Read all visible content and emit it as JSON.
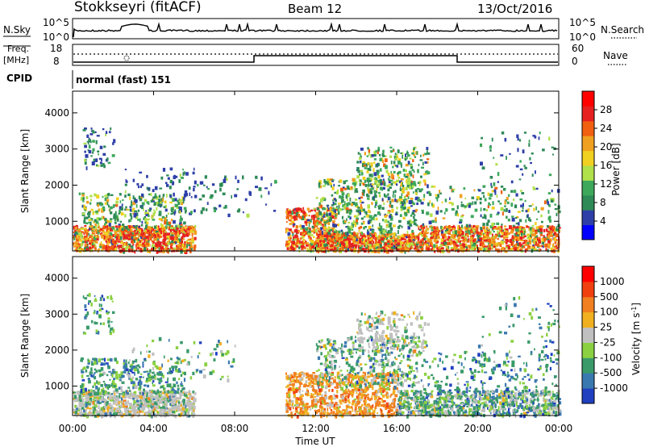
{
  "header": {
    "station": "Stokkseyri (fitACF)",
    "beam": "Beam 12",
    "date": "13/Oct/2016"
  },
  "nsky_panel": {
    "left_label": "N.Sky",
    "left_ticks": [
      "10^5",
      "10^0"
    ],
    "right_ticks": [
      "10^5",
      "10^0"
    ],
    "right_label": "N.Search"
  },
  "freq_panel": {
    "left_label": "Freq.",
    "left_unit": "[MHz]",
    "left_ticks": [
      "18",
      "8"
    ],
    "right_ticks": [
      "60",
      "0"
    ],
    "right_label": "Nave"
  },
  "cpid_label": "CPID",
  "cpid_text": "normal (fast) 151",
  "chart_data": [
    {
      "type": "heatmap",
      "name": "power",
      "ylabel": "Slant Range [km]",
      "ylim": [
        180,
        4600
      ],
      "yticks": [
        "1000",
        "2000",
        "3000",
        "4000"
      ],
      "yvals": [
        1000,
        2000,
        3000,
        4000
      ],
      "xlim_hours": [
        0,
        24
      ],
      "colorbar": {
        "label": "Power [dB]",
        "ticks": [
          "28",
          "24",
          "20",
          "16",
          "12",
          "8",
          "4"
        ],
        "colors": [
          "#0000ff",
          "#2e3fa8",
          "#2e8a57",
          "#3da85a",
          "#b0e04a",
          "#f0d020",
          "#f0a020",
          "#f06010",
          "#e62020",
          "#ff0000"
        ]
      }
    },
    {
      "type": "heatmap",
      "name": "velocity",
      "ylabel": "Slant Range [km]",
      "ylim": [
        180,
        4600
      ],
      "yticks": [
        "1000",
        "2000",
        "3000",
        "4000"
      ],
      "yvals": [
        1000,
        2000,
        3000,
        4000
      ],
      "xlim_hours": [
        0,
        24
      ],
      "colorbar": {
        "label": "Velocity [m s",
        "label_sup": "-1",
        "label_close": "]",
        "ticks": [
          "1000",
          "500",
          "100",
          "25",
          "-25",
          "-100",
          "-500",
          "-1000"
        ],
        "colors": [
          "#2040c0",
          "#3a78b0",
          "#3a9a6a",
          "#8ad040",
          "#c0c0c0",
          "#f0b020",
          "#f08020",
          "#f04010",
          "#ff0000"
        ]
      }
    }
  ],
  "xaxis": {
    "ticks": [
      "00:00",
      "04:00",
      "08:00",
      "12:00",
      "16:00",
      "20:00",
      "00:00"
    ],
    "hours": [
      0,
      4,
      8,
      12,
      16,
      20,
      24
    ],
    "label": "Time UT"
  },
  "colors": {
    "axis": "#000000",
    "background": "#ffffff"
  }
}
